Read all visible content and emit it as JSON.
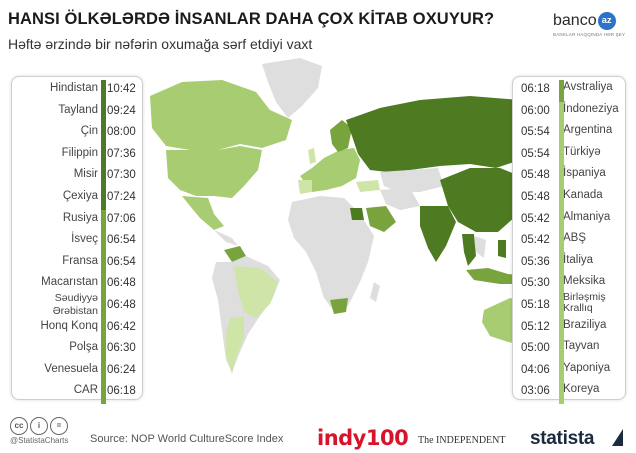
{
  "header": {
    "title": "HANSI ÖLKƏLƏRDƏ İNSANLAR DAHA ÇOX KİTAB OXUYUR?",
    "subtitle": "Həftə ərzində bir nəfərin oxumağa sərf etdiyi vaxt"
  },
  "logo": {
    "word": "banco",
    "badge": "az",
    "tagline": "BANKLAR HAQQINDA HƏR ŞEY"
  },
  "chart_data": {
    "type": "table",
    "title": "HANSI ÖLKƏLƏRDƏ İNSANLAR DAHA ÇOX KİTAB OXUYUR?",
    "subtitle": "Həftə ərzində bir nəfərin oxumağa sərf etdiyi vaxt",
    "unit": "hours:minutes per week",
    "left_list": [
      {
        "country": "Hindistan",
        "time": "10:42"
      },
      {
        "country": "Tayland",
        "time": "09:24"
      },
      {
        "country": "Çin",
        "time": "08:00"
      },
      {
        "country": "Filippin",
        "time": "07:36"
      },
      {
        "country": "Misir",
        "time": "07:30"
      },
      {
        "country": "Çexiya",
        "time": "07:24"
      },
      {
        "country": "Rusiya",
        "time": "07:06"
      },
      {
        "country": "İsveç",
        "time": "06:54"
      },
      {
        "country": "Fransa",
        "time": "06:54"
      },
      {
        "country": "Macarıstan",
        "time": "06:48"
      },
      {
        "country": "Səudiyyə Ərəbistan",
        "time": "06:48"
      },
      {
        "country": "Honq Konq",
        "time": "06:42"
      },
      {
        "country": "Polşa",
        "time": "06:30"
      },
      {
        "country": "Venesuela",
        "time": "06:24"
      },
      {
        "country": "CAR",
        "time": "06:18"
      }
    ],
    "right_list": [
      {
        "country": "Avstraliya",
        "time": "06:18"
      },
      {
        "country": "İndoneziya",
        "time": "06:00"
      },
      {
        "country": "Argentina",
        "time": "05:54"
      },
      {
        "country": "Türkiyə",
        "time": "05:54"
      },
      {
        "country": "İspaniya",
        "time": "05:48"
      },
      {
        "country": "Kanada",
        "time": "05:48"
      },
      {
        "country": "Almaniya",
        "time": "05:42"
      },
      {
        "country": "ABŞ",
        "time": "05:42"
      },
      {
        "country": "İtaliya",
        "time": "05:36"
      },
      {
        "country": "Meksika",
        "time": "05:30"
      },
      {
        "country": "Birləşmiş Krallıq",
        "time": "05:18"
      },
      {
        "country": "Braziliya",
        "time": "05:12"
      },
      {
        "country": "Tayvan",
        "time": "05:00"
      },
      {
        "country": "Yaponiya",
        "time": "04:06"
      },
      {
        "country": "Koreya",
        "time": "03:06"
      }
    ],
    "colors": {
      "dark": "#4e7a22",
      "mid": "#79a33d",
      "light": "#a8cc72",
      "pale": "#cfe5a7",
      "nodata": "#dedede"
    }
  },
  "footer": {
    "handle": "@StatistaCharts",
    "source": "Source: NOP World CultureScore Index",
    "brand_indy": "indy100",
    "brand_independent": "The INDEPENDENT",
    "brand_statista": "statista"
  }
}
